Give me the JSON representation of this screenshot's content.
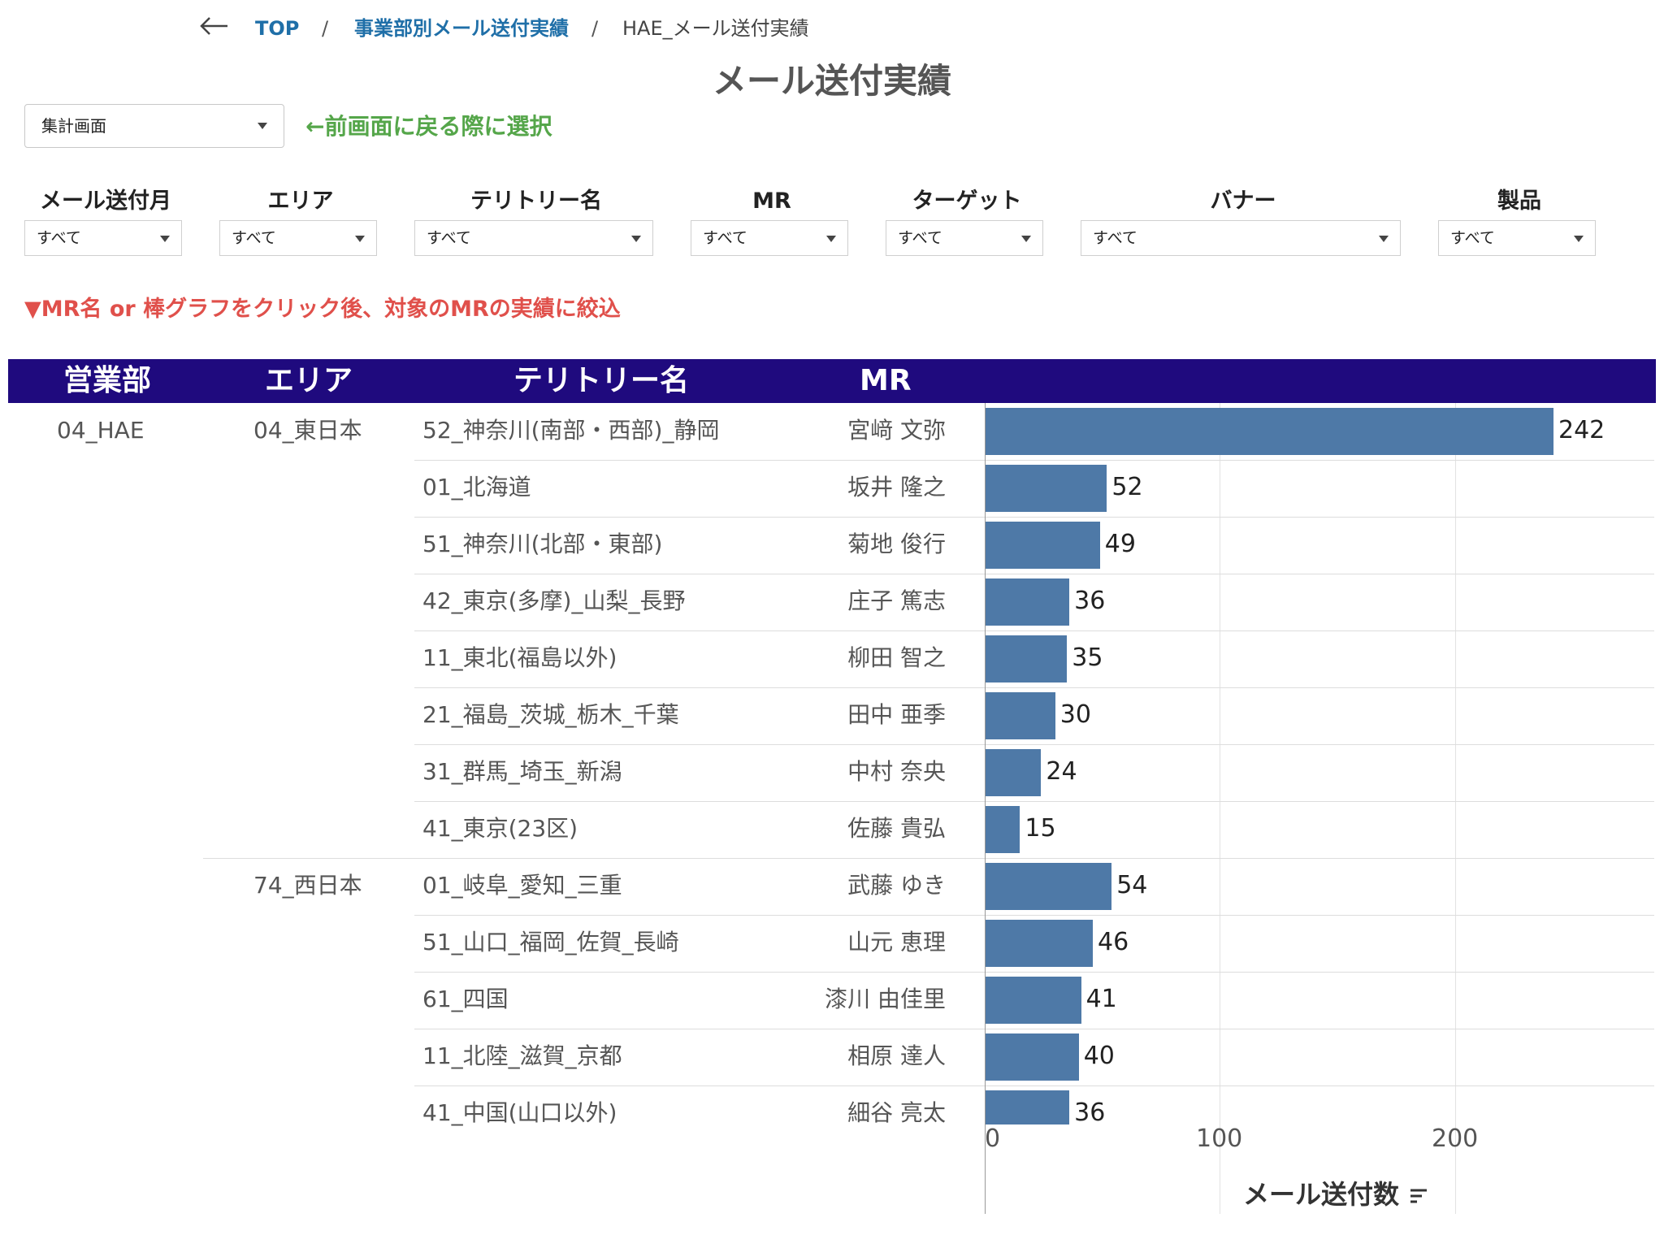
{
  "breadcrumb": {
    "top": "TOP",
    "sep": "/",
    "parent": "事業部別メール送付実績",
    "current": "HAE_メール送付実績"
  },
  "page_title": "メール送付実績",
  "view_select": {
    "value": "集計画面"
  },
  "back_hint": "←前画面に戻る際に選択",
  "filters": [
    {
      "label": "メール送付月",
      "value": "すべて"
    },
    {
      "label": "エリア",
      "value": "すべて"
    },
    {
      "label": "テリトリー名",
      "value": "すべて"
    },
    {
      "label": "MR",
      "value": "すべて"
    },
    {
      "label": "ターゲット",
      "value": "すべて"
    },
    {
      "label": "バナー",
      "value": "すべて"
    },
    {
      "label": "製品",
      "value": "すべて"
    }
  ],
  "click_hint": "▼MR名 or 棒グラフをクリック後、対象のMRの実績に絞込",
  "table_headers": {
    "dept": "営業部",
    "area": "エリア",
    "territory": "テリトリー名",
    "mr": "MR"
  },
  "dept": "04_HAE",
  "areas": [
    "04_東日本",
    "74_西日本"
  ],
  "colors": {
    "header_bg": "#1f0a7e",
    "bar": "#4e79a7",
    "hint_green": "#55a64a",
    "hint_red": "#e0504b",
    "link": "#1f6fa8"
  },
  "chart_data": {
    "type": "bar",
    "orientation": "horizontal",
    "xlabel": "メール送付数",
    "xlim": [
      0,
      285
    ],
    "xticks": [
      "0",
      "100",
      "200"
    ],
    "grid": true,
    "rows": [
      {
        "area": "04_東日本",
        "territory": "52_神奈川(南部・西部)_静岡",
        "mr": "宮﨑 文弥",
        "value": 242
      },
      {
        "area": "04_東日本",
        "territory": "01_北海道",
        "mr": "坂井 隆之",
        "value": 52
      },
      {
        "area": "04_東日本",
        "territory": "51_神奈川(北部・東部)",
        "mr": "菊地 俊行",
        "value": 49
      },
      {
        "area": "04_東日本",
        "territory": "42_東京(多摩)_山梨_長野",
        "mr": "庄子 篤志",
        "value": 36
      },
      {
        "area": "04_東日本",
        "territory": "11_東北(福島以外)",
        "mr": "柳田 智之",
        "value": 35
      },
      {
        "area": "04_東日本",
        "territory": "21_福島_茨城_栃木_千葉",
        "mr": "田中 亜季",
        "value": 30
      },
      {
        "area": "04_東日本",
        "territory": "31_群馬_埼玉_新潟",
        "mr": "中村 奈央",
        "value": 24
      },
      {
        "area": "04_東日本",
        "territory": "41_東京(23区)",
        "mr": "佐藤 貴弘",
        "value": 15
      },
      {
        "area": "74_西日本",
        "territory": "01_岐阜_愛知_三重",
        "mr": "武藤 ゆき",
        "value": 54
      },
      {
        "area": "74_西日本",
        "territory": "51_山口_福岡_佐賀_長崎",
        "mr": "山元 恵理",
        "value": 46
      },
      {
        "area": "74_西日本",
        "territory": "61_四国",
        "mr": "漆川 由佳里",
        "value": 41
      },
      {
        "area": "74_西日本",
        "territory": "11_北陸_滋賀_京都",
        "mr": "相原 達人",
        "value": 40
      },
      {
        "area": "74_西日本",
        "territory": "41_中国(山口以外)",
        "mr": "細谷 亮太",
        "value": 36
      }
    ]
  }
}
